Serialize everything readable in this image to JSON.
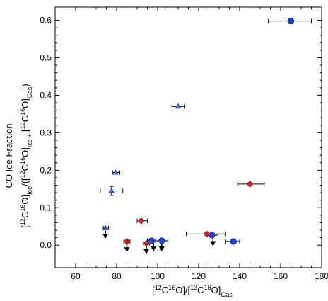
{
  "chart_data": {
    "type": "scatter",
    "xlim": [
      50,
      180
    ],
    "ylim": [
      -0.06,
      0.635
    ],
    "x_ticks": [
      60,
      80,
      100,
      120,
      140,
      160,
      180
    ],
    "y_ticks": [
      0.0,
      0.1,
      0.2,
      0.3,
      0.4,
      0.5,
      0.6
    ],
    "x_tick_labels": [
      "60",
      "80",
      "100",
      "120",
      "140",
      "160",
      "180"
    ],
    "y_tick_labels": [
      "0.0",
      "0.1",
      "0.2",
      "0.3",
      "0.4",
      "0.5",
      "0.6"
    ],
    "grid": false,
    "ylabel_line1": "CO Ice Fraction",
    "ylabel_line2": {
      "p1": "[",
      "s1": "12",
      "p2": "C",
      "s2": "16",
      "p3": "O]",
      "b1": "Ice",
      "p4": "/([",
      "s3": "12",
      "p5": "C",
      "s4": "16",
      "p6": "O]",
      "b2": "Ice + ",
      "p7": "[",
      "s5": "12",
      "p8": "C",
      "s6": "16",
      "p9": "O]",
      "b3": "Gas",
      "p10": ")"
    },
    "xlabel": {
      "p1": "[",
      "s1": "12",
      "p2": "C",
      "s2": "16",
      "p3": "O]/[",
      "s3": "13",
      "p4": "C",
      "s4": "16",
      "p5": "O]",
      "b1": "Gas"
    },
    "series": [
      {
        "marker": "circle",
        "color": "#1f3fdd",
        "points": [
          {
            "x": 165,
            "y": 0.598,
            "xerr": [
              154,
              175
            ],
            "yerr": 0.007
          },
          {
            "x": 137,
            "y": 0.01,
            "xerr": [
              133,
              140
            ]
          },
          {
            "x": 126.5,
            "y": 0.027,
            "xerr": [
              124,
              129.5
            ]
          },
          {
            "x": 102,
            "y": 0.012,
            "xerr": [
              99,
              105
            ]
          },
          {
            "x": 97,
            "y": 0.012,
            "xerr": [
              95,
              99
            ]
          }
        ]
      },
      {
        "marker": "diamond",
        "color": "#d0202a",
        "points": [
          {
            "x": 145,
            "y": 0.163,
            "xerr": [
              139,
              152
            ]
          },
          {
            "x": 124,
            "y": 0.03,
            "xerr": [
              114,
              133
            ]
          },
          {
            "x": 92,
            "y": 0.065,
            "xerr": [
              90,
              95
            ]
          },
          {
            "x": 85,
            "y": 0.01,
            "xerr": [
              83.5,
              86.5
            ]
          },
          {
            "x": 94.5,
            "y": 0.005,
            "xerr": [
              93,
              96
            ]
          }
        ]
      },
      {
        "marker": "triangle",
        "color": "#3a6fd8",
        "points": [
          {
            "x": 110,
            "y": 0.37,
            "xerr": [
              107,
              113
            ]
          },
          {
            "x": 79.5,
            "y": 0.194,
            "xerr": [
              78,
              81.5
            ]
          },
          {
            "x": 77.5,
            "y": 0.145,
            "xerr": [
              72,
              83
            ],
            "yerr": 0.012
          },
          {
            "x": 74.5,
            "y": 0.046,
            "xerr": [
              73.5,
              76
            ]
          },
          {
            "x": 96.5,
            "y": 0.01,
            "xerr": [
              95.5,
              98
            ]
          }
        ]
      }
    ],
    "upper_limits": [
      {
        "x": 74.5,
        "y": 0.04
      },
      {
        "x": 85,
        "y": 0.004
      },
      {
        "x": 94.5,
        "y": -0.001
      },
      {
        "x": 98,
        "y": 0.006
      },
      {
        "x": 102,
        "y": 0.006
      },
      {
        "x": 127,
        "y": 0.02
      }
    ]
  }
}
